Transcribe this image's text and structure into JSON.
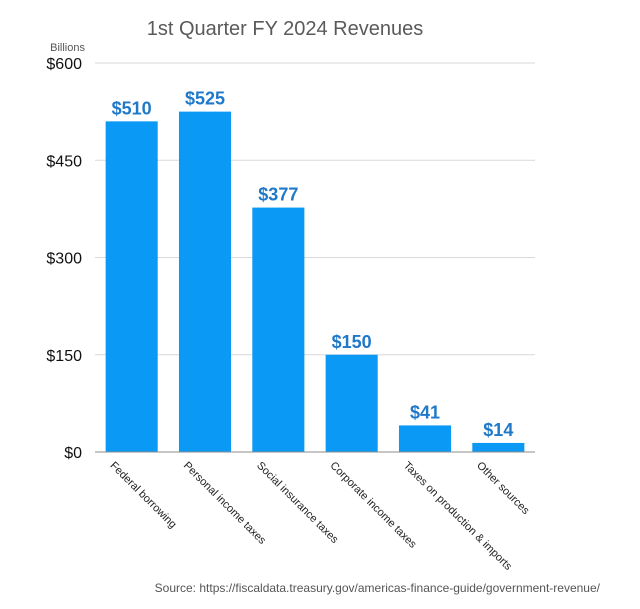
{
  "chart_data": {
    "type": "bar",
    "title": "1st Quarter FY 2024 Revenues",
    "unit_label": "Billions",
    "categories": [
      "Federal borrowing",
      "Personal income taxes",
      "Social insurance taxes",
      "Corporate income taxes",
      "Taxes on production & imports",
      "Other sources"
    ],
    "values": [
      510,
      525,
      377,
      150,
      41,
      14
    ],
    "data_labels": [
      "$510",
      "$525",
      "$377",
      "$150",
      "$41",
      "$14"
    ],
    "ylim": [
      0,
      600
    ],
    "yticks": [
      0,
      150,
      300,
      450,
      600
    ],
    "ytick_labels": [
      "$0",
      "$150",
      "$300",
      "$450",
      "$600"
    ],
    "xlabel": "",
    "ylabel": "",
    "grid": true,
    "bar_color": "#0a99f5",
    "label_color": "#1f78c8",
    "source": "Source: https://fiscaldata.treasury.gov/americas-finance-guide/government-revenue/"
  }
}
